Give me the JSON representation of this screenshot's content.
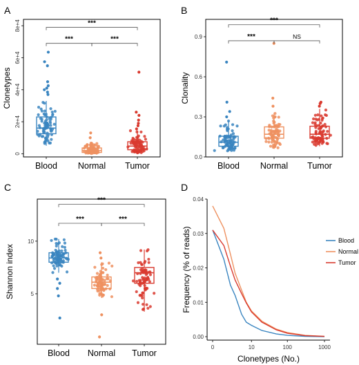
{
  "colors": {
    "Blood": "#3a85c0",
    "Normal": "#ee9160",
    "Tumor": "#d93a2f"
  },
  "chart_data": [
    {
      "panel": "A",
      "type": "box",
      "ylabel": "Clonetypes",
      "xlabel": "",
      "categories": [
        "Blood",
        "Normal",
        "Tumor"
      ],
      "ylim": [
        -2000,
        84000
      ],
      "yticks": [
        0,
        20000,
        40000,
        60000,
        80000
      ],
      "yticklabels": [
        "0",
        "2e+4",
        "4e+4",
        "6e+4",
        "8e+4"
      ],
      "boxes": [
        {
          "name": "Blood",
          "min": 5000,
          "q1": 12500,
          "median": 16000,
          "q3": 23000,
          "max": 33000,
          "outliers": [
            37000,
            38500,
            40000,
            41000,
            42500,
            45000,
            55000,
            57500,
            63500
          ]
        },
        {
          "name": "Normal",
          "min": 0,
          "q1": 800,
          "median": 2000,
          "q3": 3600,
          "max": 7000,
          "outliers": [
            10000,
            13000
          ]
        },
        {
          "name": "Tumor",
          "min": 0,
          "q1": 2500,
          "median": 4800,
          "q3": 7500,
          "max": 14500,
          "outliers": [
            15500,
            17500,
            19000,
            21000,
            24000,
            26000,
            51000
          ]
        }
      ],
      "comparisons": [
        {
          "pair": "Blood-Tumor",
          "label": "***",
          "level": 79000
        },
        {
          "pair": "Blood-Normal",
          "label": "***",
          "level": 69000
        },
        {
          "pair": "Normal-Tumor",
          "label": "***",
          "level": 69000
        }
      ]
    },
    {
      "panel": "B",
      "type": "box",
      "ylabel": "Clonality",
      "xlabel": "",
      "categories": [
        "Blood",
        "Normal",
        "Tumor"
      ],
      "ylim": [
        0,
        1.03
      ],
      "yticks": [
        0,
        0.3,
        0.6,
        0.9
      ],
      "yticklabels": [
        "0.0",
        "0.3",
        "0.6",
        "0.9"
      ],
      "boxes": [
        {
          "name": "Blood",
          "min": 0.04,
          "q1": 0.08,
          "median": 0.11,
          "q3": 0.155,
          "max": 0.27,
          "outliers": [
            0.3,
            0.34,
            0.41,
            0.71
          ]
        },
        {
          "name": "Normal",
          "min": 0.06,
          "q1": 0.14,
          "median": 0.17,
          "q3": 0.225,
          "max": 0.33,
          "outliers": [
            0.38,
            0.44,
            0.85
          ]
        },
        {
          "name": "Tumor",
          "min": 0.08,
          "q1": 0.14,
          "median": 0.17,
          "q3": 0.23,
          "max": 0.36,
          "outliers": [
            0.38,
            0.4,
            0.41
          ]
        }
      ],
      "comparisons": [
        {
          "pair": "Blood-Tumor",
          "label": "***",
          "level": 0.99
        },
        {
          "pair": "Blood-Normal",
          "label": "***",
          "level": 0.87
        },
        {
          "pair": "Normal-Tumor",
          "label": "NS",
          "level": 0.87
        }
      ]
    },
    {
      "panel": "C",
      "type": "box",
      "ylabel": "Shannon index",
      "xlabel": "",
      "categories": [
        "Blood",
        "Normal",
        "Tumor"
      ],
      "ylim": [
        0.2,
        14.0
      ],
      "yticks": [
        5,
        10
      ],
      "yticklabels": [
        "5",
        "10"
      ],
      "boxes": [
        {
          "name": "Blood",
          "min": 7.0,
          "q1": 8.0,
          "median": 8.4,
          "q3": 8.9,
          "max": 10.2,
          "outliers": [
            6.4,
            6.0,
            5.5,
            4.8,
            2.7
          ]
        },
        {
          "name": "Normal",
          "min": 4.6,
          "q1": 5.5,
          "median": 6.1,
          "q3": 6.6,
          "max": 8.0,
          "outliers": [
            8.4,
            8.9,
            3.0,
            0.9
          ]
        },
        {
          "name": "Tumor",
          "min": 3.3,
          "q1": 6.0,
          "median": 7.0,
          "q3": 7.5,
          "max": 9.2,
          "outliers": []
        }
      ],
      "comparisons": [
        {
          "pair": "Blood-Tumor",
          "label": "***",
          "level": 13.5
        },
        {
          "pair": "Blood-Normal",
          "label": "***",
          "level": 11.7
        },
        {
          "pair": "Normal-Tumor",
          "label": "***",
          "level": 11.7
        }
      ]
    },
    {
      "panel": "D",
      "type": "line",
      "ylabel": "Frequency (% of reads)",
      "xlabel": "Clonetypes (No.)",
      "xscale": "log1p",
      "xticks": [
        0,
        10,
        100,
        1000
      ],
      "xticklabels": [
        "0",
        "10",
        "100",
        "1000"
      ],
      "ylim": [
        -0.001,
        0.04
      ],
      "yticks": [
        0,
        0.01,
        0.02,
        0.03,
        0.04
      ],
      "yticklabels": [
        "0.00",
        "0.01",
        "0.02",
        "0.03",
        "0.04"
      ],
      "legend": "right",
      "series": [
        {
          "name": "Blood",
          "x": [
            0,
            1,
            2,
            3,
            5,
            7,
            10,
            20,
            50,
            100,
            300,
            1000
          ],
          "y": [
            0.031,
            0.0225,
            0.015,
            0.012,
            0.0065,
            0.0042,
            0.0033,
            0.0018,
            0.0008,
            0.0004,
            0.0001,
            0
          ]
        },
        {
          "name": "Normal",
          "x": [
            0,
            1,
            2,
            3,
            5,
            7,
            10,
            20,
            50,
            100,
            300,
            1000
          ],
          "y": [
            0.038,
            0.0315,
            0.024,
            0.0185,
            0.0135,
            0.01,
            0.0075,
            0.0045,
            0.0022,
            0.0012,
            0.0004,
            0.0001
          ]
        },
        {
          "name": "Tumor",
          "x": [
            0,
            1,
            2,
            3,
            5,
            7,
            10,
            20,
            50,
            100,
            300,
            1000
          ],
          "y": [
            0.031,
            0.0265,
            0.0205,
            0.0165,
            0.0125,
            0.0098,
            0.0072,
            0.0042,
            0.002,
            0.001,
            0.0003,
            0.0001
          ]
        }
      ]
    }
  ]
}
